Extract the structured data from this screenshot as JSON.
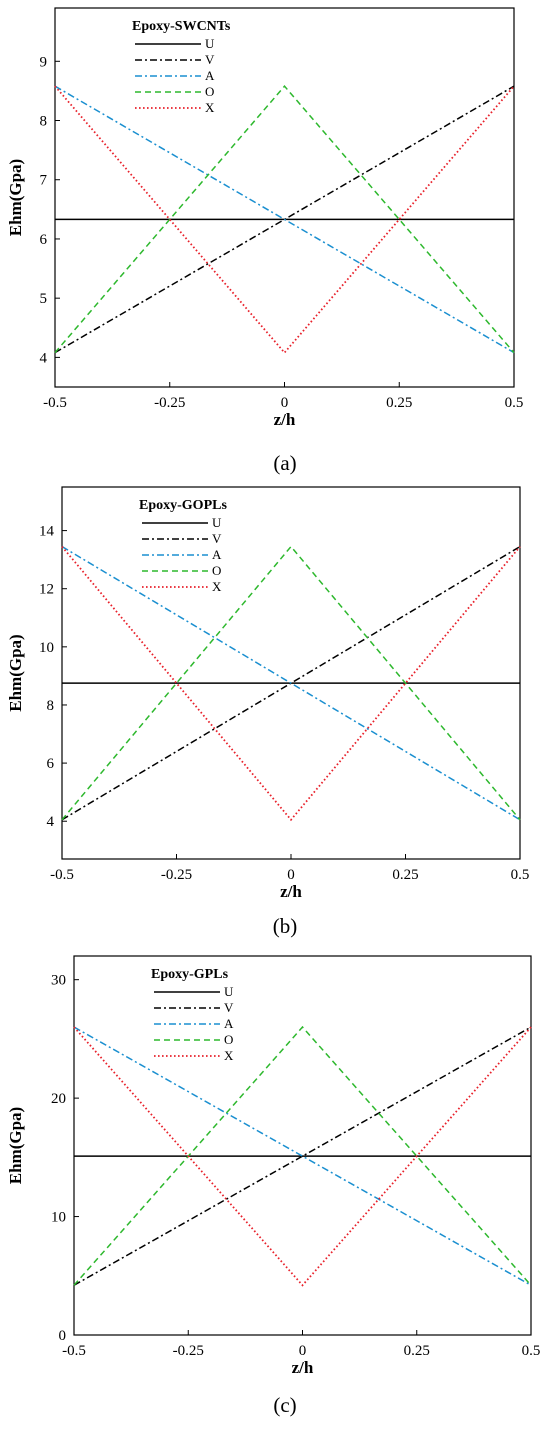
{
  "chart_data": [
    {
      "type": "line",
      "panel_label": "(a)",
      "legend_title": "Epoxy-SWCNTs",
      "xlabel": "z/h",
      "ylabel": "Ehm(Gpa)",
      "xlim": [
        -0.5,
        0.5
      ],
      "ylim": [
        3.5,
        9.9
      ],
      "x_ticks": [
        -0.5,
        -0.25,
        0,
        0.25,
        0.5
      ],
      "x_tick_labels": [
        "-0.5",
        "-0.25",
        "0",
        "0.25",
        "0.5"
      ],
      "y_ticks": [
        4,
        5,
        6,
        7,
        8,
        9
      ],
      "y_tick_labels": [
        "4",
        "5",
        "6",
        "7",
        "8",
        "9"
      ],
      "legend_position": "top-left",
      "grid": false,
      "series": [
        {
          "name": "U",
          "color": "#000000",
          "style": "solid",
          "x": [
            -0.5,
            0.5
          ],
          "y": [
            6.33,
            6.33
          ]
        },
        {
          "name": "V",
          "color": "#000000",
          "style": "dash-dot",
          "x": [
            -0.5,
            0.5
          ],
          "y": [
            4.08,
            8.58
          ]
        },
        {
          "name": "A",
          "color": "#1a8fd0",
          "style": "dash-dot",
          "x": [
            -0.5,
            0.5
          ],
          "y": [
            8.58,
            4.08
          ]
        },
        {
          "name": "O",
          "color": "#2db82d",
          "style": "dashed",
          "x": [
            -0.5,
            0,
            0.5
          ],
          "y": [
            4.08,
            8.58,
            4.08
          ]
        },
        {
          "name": "X",
          "color": "#e8212b",
          "style": "dotted",
          "x": [
            -0.5,
            0,
            0.5
          ],
          "y": [
            8.58,
            4.08,
            8.58
          ]
        }
      ]
    },
    {
      "type": "line",
      "panel_label": "(b)",
      "legend_title": "Epoxy-GOPLs",
      "xlabel": "z/h",
      "ylabel": "Ehm(Gpa)",
      "xlim": [
        -0.5,
        0.5
      ],
      "ylim": [
        2.7,
        15.5
      ],
      "x_ticks": [
        -0.5,
        -0.25,
        0,
        0.25,
        0.5
      ],
      "x_tick_labels": [
        "-0.5",
        "-0.25",
        "0",
        "0.25",
        "0.5"
      ],
      "y_ticks": [
        4,
        6,
        8,
        10,
        12,
        14
      ],
      "y_tick_labels": [
        "4",
        "6",
        "8",
        "10",
        "12",
        "14"
      ],
      "legend_position": "top-left",
      "grid": false,
      "series": [
        {
          "name": "U",
          "color": "#000000",
          "style": "solid",
          "x": [
            -0.5,
            0.5
          ],
          "y": [
            8.75,
            8.75
          ]
        },
        {
          "name": "V",
          "color": "#000000",
          "style": "dash-dot",
          "x": [
            -0.5,
            0.5
          ],
          "y": [
            4.05,
            13.45
          ]
        },
        {
          "name": "A",
          "color": "#1a8fd0",
          "style": "dash-dot",
          "x": [
            -0.5,
            0.5
          ],
          "y": [
            13.45,
            4.05
          ]
        },
        {
          "name": "O",
          "color": "#2db82d",
          "style": "dashed",
          "x": [
            -0.5,
            0,
            0.5
          ],
          "y": [
            4.05,
            13.45,
            4.05
          ]
        },
        {
          "name": "X",
          "color": "#e8212b",
          "style": "dotted",
          "x": [
            -0.5,
            0,
            0.5
          ],
          "y": [
            13.45,
            4.05,
            13.45
          ]
        }
      ]
    },
    {
      "type": "line",
      "panel_label": "(c)",
      "legend_title": "Epoxy-GPLs",
      "xlabel": "z/h",
      "ylabel": "Ehm(Gpa)",
      "xlim": [
        -0.5,
        0.5
      ],
      "ylim": [
        0,
        32
      ],
      "x_ticks": [
        -0.5,
        -0.25,
        0,
        0.25,
        0.5
      ],
      "x_tick_labels": [
        "-0.5",
        "-0.25",
        "0",
        "0.25",
        "0.5"
      ],
      "y_ticks": [
        0,
        10,
        20,
        30
      ],
      "y_tick_labels": [
        "0",
        "10",
        "20",
        "30"
      ],
      "legend_position": "top-left",
      "grid": false,
      "series": [
        {
          "name": "U",
          "color": "#000000",
          "style": "solid",
          "x": [
            -0.5,
            0.5
          ],
          "y": [
            15.1,
            15.1
          ]
        },
        {
          "name": "V",
          "color": "#000000",
          "style": "dash-dot",
          "x": [
            -0.5,
            0.5
          ],
          "y": [
            4.2,
            26.0
          ]
        },
        {
          "name": "A",
          "color": "#1a8fd0",
          "style": "dash-dot",
          "x": [
            -0.5,
            0.5
          ],
          "y": [
            26.0,
            4.2
          ]
        },
        {
          "name": "O",
          "color": "#2db82d",
          "style": "dashed",
          "x": [
            -0.5,
            0,
            0.5
          ],
          "y": [
            4.2,
            26.0,
            4.2
          ]
        },
        {
          "name": "X",
          "color": "#e8212b",
          "style": "dotted",
          "x": [
            -0.5,
            0,
            0.5
          ],
          "y": [
            26.0,
            4.2,
            26.0
          ]
        }
      ]
    }
  ]
}
